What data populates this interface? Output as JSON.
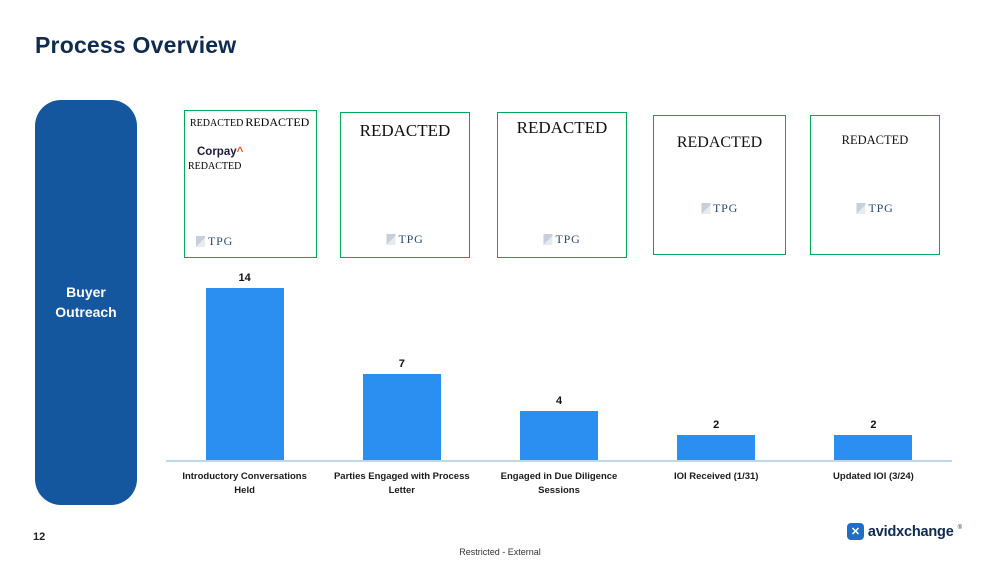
{
  "title": "Process Overview",
  "pill": {
    "label": "Buyer Outreach"
  },
  "cards": [
    {
      "top_left": "REDACTED",
      "top_right": "REDACTED",
      "brand": "Corpay",
      "brand_mark": "^",
      "sub": "REDACTED",
      "tpg": "TPG"
    },
    {
      "main": "REDACTED",
      "tpg": "TPG"
    },
    {
      "main": "REDACTED",
      "tpg": "TPG"
    },
    {
      "main": "REDACTED",
      "tpg": "TPG"
    },
    {
      "main": "REDACTED",
      "tpg": "TPG"
    }
  ],
  "chart_data": {
    "type": "bar",
    "categories": [
      "Introductory Conversations Held",
      "Parties Engaged with Process Letter",
      "Engaged in Due Diligence Sessions",
      "IOI Received  (1/31)",
      "Updated IOI (3/24)"
    ],
    "values": [
      14,
      7,
      4,
      2,
      2
    ],
    "title": "",
    "xlabel": "",
    "ylabel": "",
    "ylim": [
      0,
      14
    ],
    "grid": false,
    "legend": false,
    "bar_color": "#2B8FF2",
    "baseline_color": "#BDD7EE",
    "value_labels_shown": true
  },
  "footer": {
    "page_number": "12",
    "classification": "Restricted - External",
    "brand": "avidxchange",
    "brand_mark": "®",
    "brand_icon_glyph": "✕"
  },
  "colors": {
    "title": "#0F2B4E",
    "pill_bg": "#15579F",
    "card_border": "#00A859",
    "bar": "#2B8FF2"
  }
}
